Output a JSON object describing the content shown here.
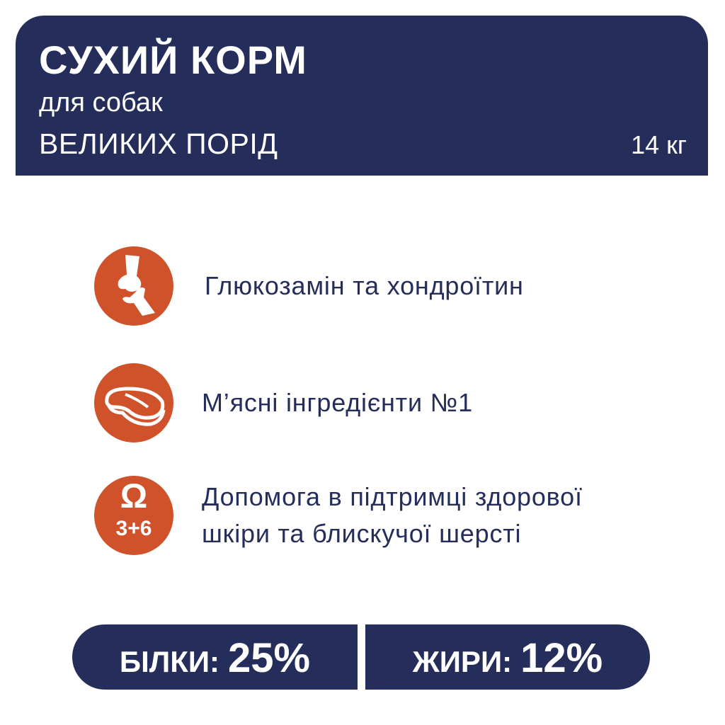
{
  "header": {
    "title": "СУХИЙ КОРМ",
    "subtitle": "для собак",
    "subtitle2": "ВЕЛИКИХ ПОРІД",
    "weight": "14 кг"
  },
  "features": [
    {
      "icon": "joint-bone-icon",
      "text": "Глюкозамін та хондроїтин"
    },
    {
      "icon": "meat-steak-icon",
      "text": "М’ясні інгредієнти №1"
    },
    {
      "icon": "omega-3-6-icon",
      "icon_text": "3+6",
      "text_line1": "Допомога в підтримці здорової",
      "text_line2": "шкіри та блискучої шерсті"
    }
  ],
  "nutrition": [
    {
      "label": "БІЛКИ:",
      "value": "25%"
    },
    {
      "label": "ЖИРИ:",
      "value": "12%"
    }
  ],
  "colors": {
    "navy": "#252d5a",
    "orange": "#d0522b"
  }
}
